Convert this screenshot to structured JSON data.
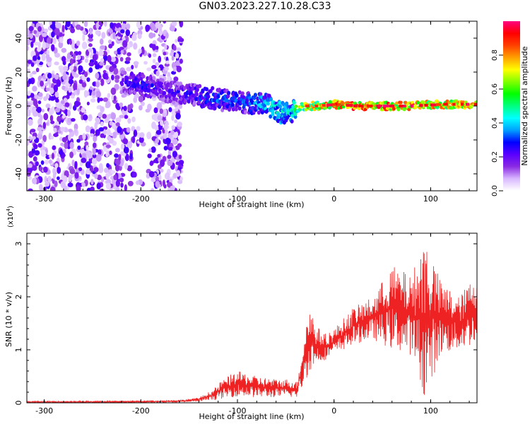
{
  "title": "GN03.2023.227.10.28.C33",
  "chart_data": [
    {
      "type": "heatmap",
      "xlabel": "Height of straight line (km)",
      "ylabel": "Frequency (Hz)",
      "xlim": [
        -318,
        148
      ],
      "ylim": [
        -50,
        50
      ],
      "x_ticks": [
        -300,
        -200,
        -100,
        0,
        100
      ],
      "y_ticks": [
        -40,
        -20,
        0,
        20,
        40
      ],
      "colorbar": {
        "label": "Normalized spectral amplitude",
        "range": [
          0,
          1
        ],
        "ticks": [
          0.0,
          0.2,
          0.4,
          0.6,
          0.8
        ],
        "colors": [
          "#ffffff",
          "#d9b8ff",
          "#8a2be2",
          "#5a00ff",
          "#0000ff",
          "#00a0ff",
          "#00ffff",
          "#00ff80",
          "#00ff00",
          "#80ff00",
          "#ffff00",
          "#ffa000",
          "#ff4000",
          "#ff0000",
          "#ff0080"
        ]
      },
      "ridge": {
        "x": [
          -220,
          -200,
          -170,
          -150,
          -130,
          -110,
          -90,
          -70,
          -55,
          -45,
          -35,
          -20,
          0,
          20,
          50,
          80,
          110,
          148
        ],
        "y": [
          14,
          13,
          8,
          7,
          5,
          3,
          2,
          1,
          -4,
          -4,
          0,
          0,
          1,
          0,
          0,
          0,
          1,
          1
        ],
        "amplitude": [
          0.25,
          0.3,
          0.25,
          0.3,
          0.35,
          0.35,
          0.35,
          0.45,
          0.5,
          0.45,
          0.7,
          0.8,
          0.85,
          0.9,
          0.9,
          0.85,
          0.85,
          0.8
        ]
      },
      "noise_region": {
        "x_range": [
          -318,
          -158
        ],
        "y_range": [
          -50,
          50
        ]
      }
    },
    {
      "type": "line",
      "xlabel": "Height of straight line (km)",
      "ylabel": "SNR (10 * v/v)",
      "multiplier_label": "(x10",
      "multiplier_exp": "4",
      "multiplier_close": ")",
      "xlim": [
        -318,
        148
      ],
      "ylim": [
        0,
        3.2
      ],
      "x_ticks": [
        -300,
        -200,
        -100,
        0,
        100
      ],
      "y_ticks": [
        0,
        1,
        2,
        3
      ],
      "series_color": "#ee2222",
      "envelope": {
        "x": [
          -318,
          -200,
          -160,
          -140,
          -125,
          -115,
          -100,
          -80,
          -60,
          -45,
          -38,
          -32,
          -25,
          -20,
          -10,
          0,
          20,
          40,
          60,
          80,
          95,
          110,
          130,
          148
        ],
        "low": [
          0.0,
          0.0,
          0.01,
          0.02,
          0.05,
          0.08,
          0.12,
          0.1,
          0.1,
          0.1,
          0.1,
          0.3,
          0.6,
          0.7,
          0.8,
          0.9,
          1.1,
          1.2,
          1.0,
          0.9,
          0.05,
          0.9,
          1.0,
          1.1
        ],
        "high": [
          0.03,
          0.04,
          0.05,
          0.1,
          0.25,
          0.45,
          0.6,
          0.5,
          0.45,
          0.45,
          0.4,
          1.2,
          1.9,
          1.5,
          1.3,
          1.4,
          1.8,
          2.0,
          2.6,
          2.4,
          3.2,
          2.3,
          2.0,
          2.5
        ]
      }
    }
  ]
}
